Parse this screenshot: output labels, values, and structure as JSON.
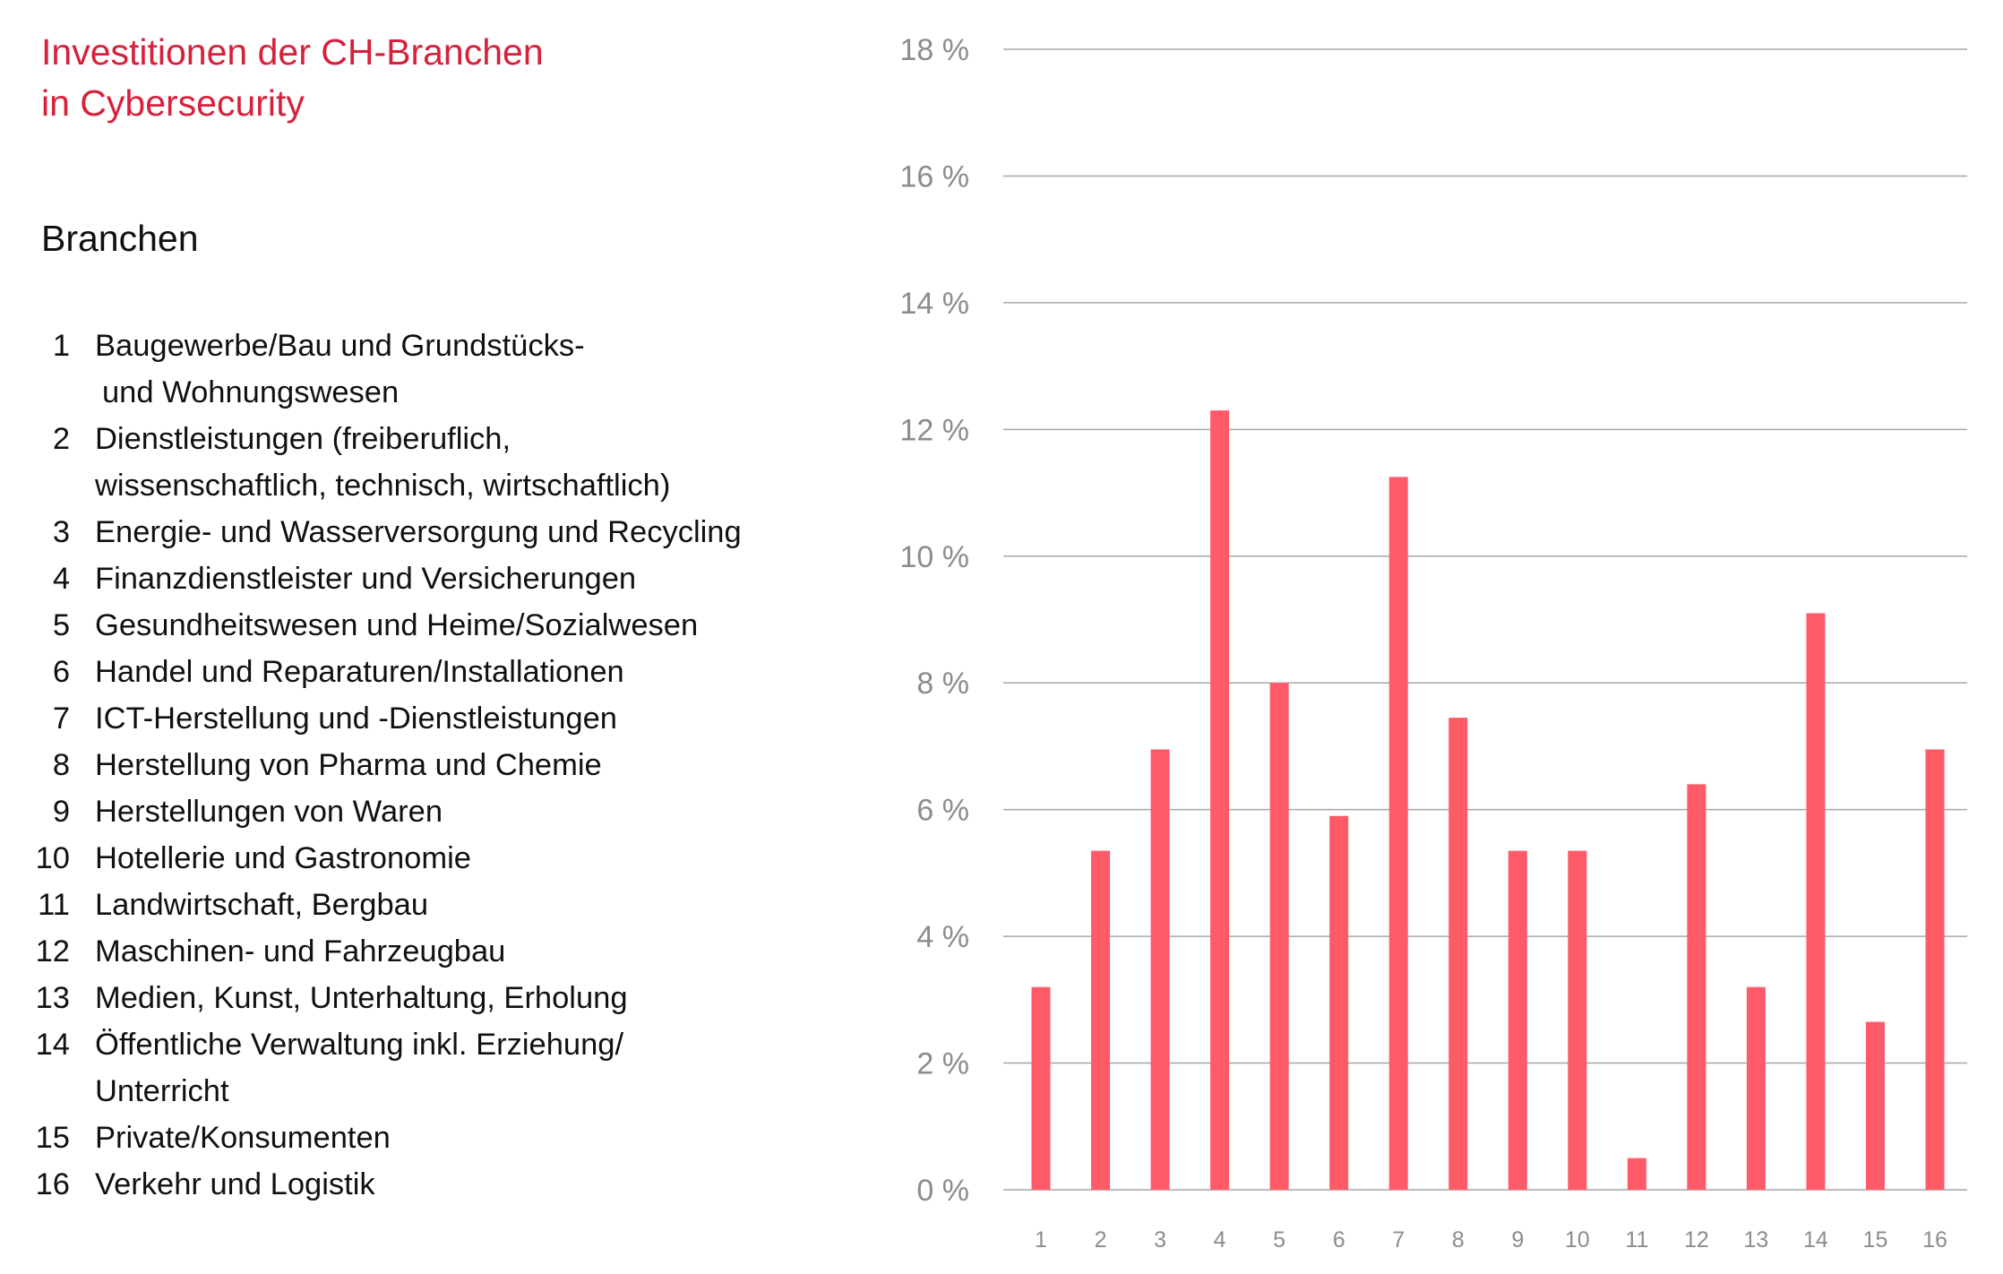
{
  "title": [
    "Investitionen der CH-Branchen",
    "in Cybersecurity"
  ],
  "legend": {
    "heading": "Branchen",
    "items": [
      {
        "num": "1",
        "lines": [
          "Baugewerbe/Bau und Grundstücks-",
          "und Wohnungswesen"
        ]
      },
      {
        "num": "2",
        "lines": [
          "Dienstleistungen (freiberuflich,",
          "wissenschaftlich, technisch, wirtschaftlich)"
        ]
      },
      {
        "num": "3",
        "lines": [
          "Energie- und Wasserversorgung und Recycling"
        ]
      },
      {
        "num": "4",
        "lines": [
          "Finanzdienstleister und Versicherungen"
        ]
      },
      {
        "num": "5",
        "lines": [
          "Gesundheitswesen und Heime/Sozialwesen"
        ]
      },
      {
        "num": "6",
        "lines": [
          "Handel und Reparaturen/Installationen"
        ]
      },
      {
        "num": "7",
        "lines": [
          "ICT-Herstellung und -Dienstleistungen"
        ]
      },
      {
        "num": "8",
        "lines": [
          "Herstellung von Pharma und Chemie"
        ]
      },
      {
        "num": "9",
        "lines": [
          "Herstellungen von Waren"
        ]
      },
      {
        "num": "10",
        "lines": [
          "Hotellerie und Gastronomie"
        ]
      },
      {
        "num": "11",
        "lines": [
          "Landwirtschaft, Bergbau"
        ]
      },
      {
        "num": "12",
        "lines": [
          "Maschinen- und Fahrzeugbau"
        ]
      },
      {
        "num": "13",
        "lines": [
          "Medien, Kunst, Unterhaltung, Erholung"
        ]
      },
      {
        "num": "14",
        "lines": [
          "Öffentliche Verwaltung inkl. Erziehung/",
          "Unterricht"
        ]
      },
      {
        "num": "15",
        "lines": [
          "Private/Konsumenten"
        ]
      },
      {
        "num": "16",
        "lines": [
          "Verkehr und Logistik"
        ]
      }
    ]
  },
  "colors": {
    "bar": "#ff5a68",
    "title": "#d6203c",
    "grid": "#a6a6a6",
    "tick_text": "#8c8c8c"
  },
  "chart_data": {
    "type": "bar",
    "categories": [
      "1",
      "2",
      "3",
      "4",
      "5",
      "6",
      "7",
      "8",
      "9",
      "10",
      "11",
      "12",
      "13",
      "14",
      "15",
      "16"
    ],
    "values": [
      3.2,
      5.35,
      6.95,
      12.3,
      8.0,
      5.9,
      11.25,
      7.45,
      5.35,
      5.35,
      0.5,
      6.4,
      3.2,
      9.1,
      2.65,
      6.95
    ],
    "ylim": [
      0,
      18
    ],
    "yticks": [
      0,
      2,
      4,
      6,
      8,
      10,
      12,
      14,
      16,
      18
    ],
    "ytick_labels": [
      "0 %",
      "2 %",
      "4 %",
      "6 %",
      "8 %",
      "10 %",
      "12 %",
      "14 %",
      "16 %",
      "18 %"
    ],
    "grid": true
  }
}
